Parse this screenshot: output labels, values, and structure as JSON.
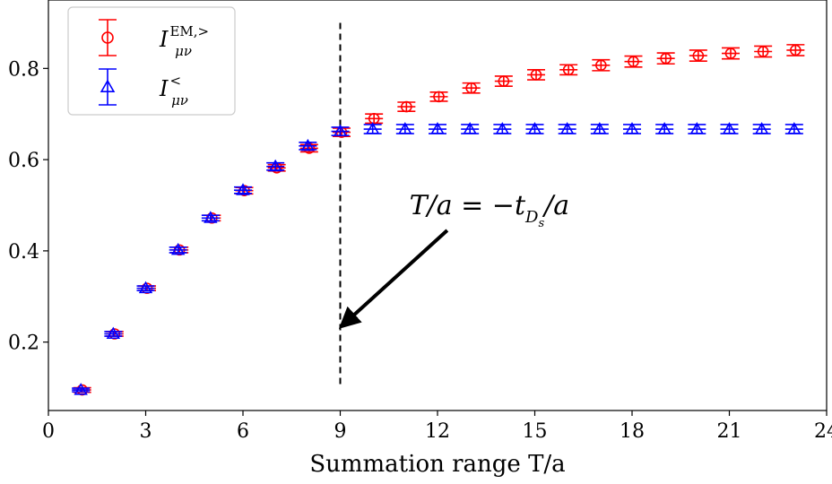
{
  "chart_data": {
    "type": "scatter",
    "xlabel": "Summation range T/a",
    "ylabel": "",
    "xlim": [
      0,
      24
    ],
    "ylim": [
      0.05,
      0.95
    ],
    "xticks": [
      0,
      3,
      6,
      9,
      12,
      15,
      18,
      21,
      24
    ],
    "yticks": [
      0.2,
      0.4,
      0.6,
      0.8
    ],
    "ytick_labels": [
      "0.2",
      "0.4",
      "0.6",
      "0.8"
    ],
    "grid": false,
    "legend_position": "top-left",
    "series": [
      {
        "name": "I_{μν}^{EM,>}",
        "legend_main": "I",
        "legend_sup": "EM,>",
        "legend_sub": "μν",
        "marker": "circle",
        "color": "#ff0000",
        "x": [
          1,
          2,
          3,
          4,
          5,
          6,
          7,
          8,
          9,
          10,
          11,
          12,
          13,
          14,
          15,
          16,
          17,
          18,
          19,
          20,
          21,
          22,
          23
        ],
        "y": [
          0.095,
          0.218,
          0.318,
          0.402,
          0.472,
          0.532,
          0.582,
          0.625,
          0.66,
          0.69,
          0.716,
          0.738,
          0.757,
          0.772,
          0.786,
          0.797,
          0.807,
          0.815,
          0.822,
          0.828,
          0.833,
          0.837,
          0.84
        ],
        "err": [
          0.005,
          0.005,
          0.005,
          0.006,
          0.006,
          0.007,
          0.007,
          0.008,
          0.009,
          0.01,
          0.01,
          0.01,
          0.011,
          0.011,
          0.011,
          0.011,
          0.012,
          0.012,
          0.012,
          0.012,
          0.012,
          0.012,
          0.012
        ]
      },
      {
        "name": "I_{μν}^{<}",
        "legend_main": "I",
        "legend_sup": "<",
        "legend_sub": "μν",
        "marker": "triangle",
        "color": "#0000ff",
        "x": [
          1,
          2,
          3,
          4,
          5,
          6,
          7,
          8,
          9,
          10,
          11,
          12,
          13,
          14,
          15,
          16,
          17,
          18,
          19,
          20,
          21,
          22,
          23
        ],
        "y": [
          0.095,
          0.218,
          0.318,
          0.402,
          0.472,
          0.533,
          0.585,
          0.63,
          0.662,
          0.667,
          0.667,
          0.667,
          0.667,
          0.667,
          0.667,
          0.667,
          0.667,
          0.667,
          0.667,
          0.667,
          0.667,
          0.667,
          0.667
        ],
        "err": [
          0.004,
          0.005,
          0.005,
          0.006,
          0.006,
          0.007,
          0.008,
          0.008,
          0.009,
          0.01,
          0.01,
          0.01,
          0.01,
          0.01,
          0.01,
          0.01,
          0.01,
          0.01,
          0.01,
          0.01,
          0.01,
          0.01,
          0.01
        ]
      }
    ],
    "vline": {
      "x": 9,
      "y_from": 0.1,
      "y_to": 0.9,
      "style": "dashed"
    },
    "annotation": {
      "text": "T/a = −t_{D_s}/a",
      "main": "T/a = −t",
      "sub": "D",
      "subsub": "s",
      "tail": "/a",
      "text_x": 13.6,
      "text_y": 0.48,
      "arrow_from": [
        12.3,
        0.445
      ],
      "arrow_to": [
        9.2,
        0.245
      ]
    }
  }
}
